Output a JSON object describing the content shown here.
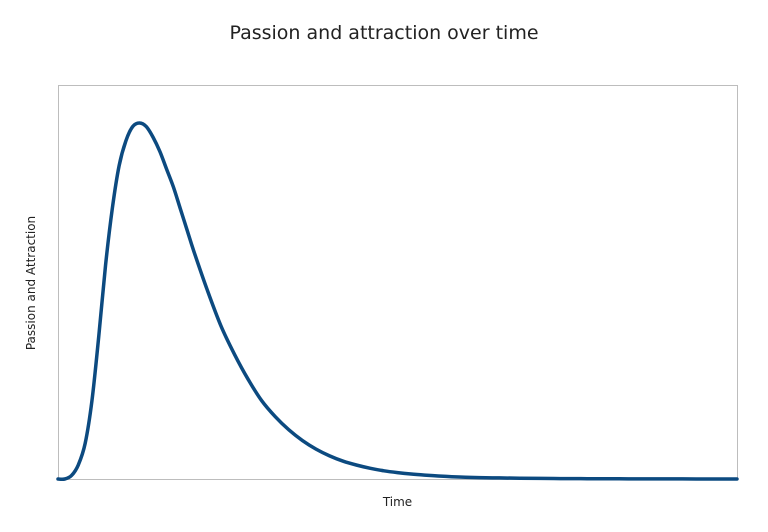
{
  "chart_data": {
    "type": "line",
    "title": "Passion and attraction over time",
    "xlabel": "Time",
    "ylabel": "Passion and Attraction",
    "xlim": [
      0,
      100
    ],
    "ylim": [
      0,
      100
    ],
    "grid": false,
    "line_color": "#0c4a80",
    "series": [
      {
        "x": [
          0,
          1,
          2,
          3,
          4,
          5,
          6,
          7,
          8,
          9,
          10,
          11,
          12,
          13,
          14,
          15,
          16,
          17,
          18,
          19,
          20,
          22,
          24,
          26,
          28,
          30,
          32,
          34,
          36,
          38,
          40,
          42,
          44,
          46,
          48,
          50,
          52,
          54,
          56,
          58,
          60,
          62,
          65,
          68,
          71,
          74,
          77,
          80,
          84,
          88,
          92,
          96,
          100
        ],
        "values": [
          0,
          0,
          1,
          4,
          10,
          22,
          40,
          60,
          76,
          88,
          95,
          99,
          100,
          99,
          96,
          92,
          87,
          82,
          76,
          70,
          64,
          53,
          43,
          35,
          28,
          22,
          17.5,
          13.8,
          10.8,
          8.4,
          6.5,
          5.0,
          3.9,
          3.0,
          2.3,
          1.8,
          1.4,
          1.1,
          0.85,
          0.65,
          0.5,
          0.4,
          0.3,
          0.22,
          0.16,
          0.12,
          0.09,
          0.07,
          0.05,
          0.03,
          0.02,
          0.01,
          0
        ]
      }
    ]
  }
}
